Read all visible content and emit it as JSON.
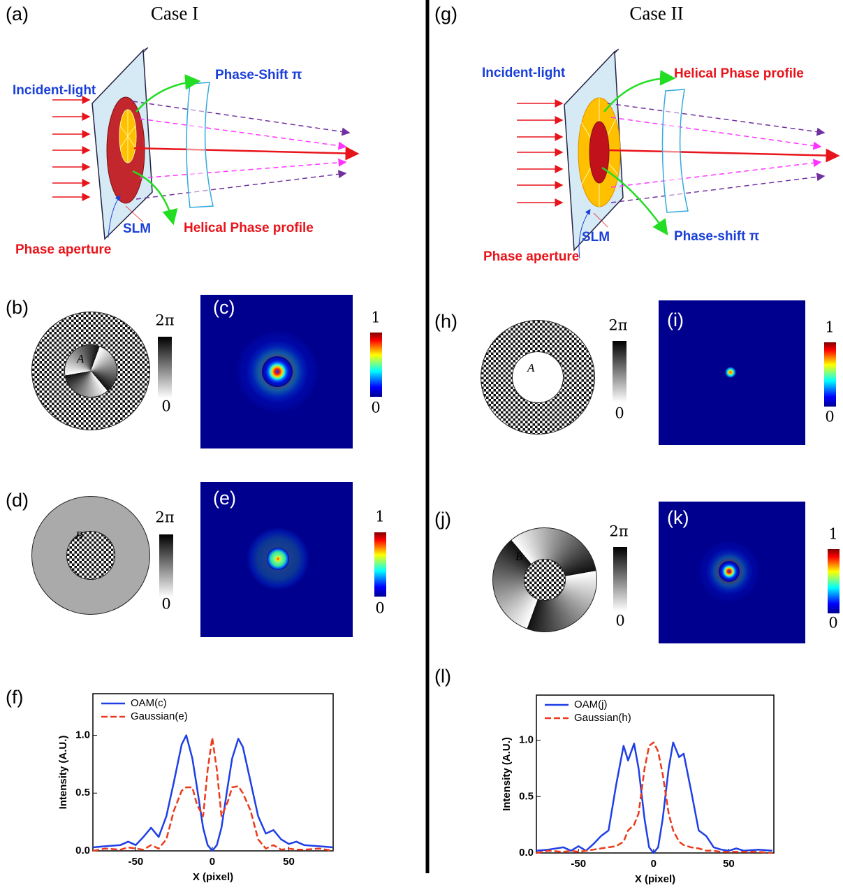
{
  "figure": {
    "left": {
      "label": "(a)",
      "title": "Case I",
      "diagram": {
        "incident": "Incident-light",
        "top": "Phase-Shift π",
        "slm": "SLM",
        "bottom": "Helical Phase profile",
        "aperture": "Phase aperture"
      },
      "mask1": {
        "label": "(b)",
        "letter": "A",
        "scale_top": "2π",
        "scale_bottom": "0"
      },
      "image1": {
        "label": "(c)",
        "scale_top": "1",
        "scale_bottom": "0"
      },
      "mask2": {
        "label": "(d)",
        "letter": "B",
        "scale_top": "2π",
        "scale_bottom": "0"
      },
      "image2": {
        "label": "(e)",
        "scale_top": "1",
        "scale_bottom": "0"
      },
      "plot_label": "(f)"
    },
    "right": {
      "label": "(g)",
      "title": "Case II",
      "diagram": {
        "incident": "Incident-light",
        "top": "Helical Phase profile",
        "slm": "SLM",
        "bottom": "Phase-shift π",
        "aperture": "Phase aperture"
      },
      "mask1": {
        "label": "(h)",
        "letter": "A",
        "scale_top": "2π",
        "scale_bottom": "0"
      },
      "image1": {
        "label": "(i)",
        "scale_top": "1",
        "scale_bottom": "0"
      },
      "mask2": {
        "label": "(j)",
        "letter": "B",
        "scale_top": "2π",
        "scale_bottom": "0"
      },
      "image2": {
        "label": "(k)",
        "scale_top": "1",
        "scale_bottom": "0"
      },
      "plot_label": "(l)"
    }
  },
  "chart_data": [
    {
      "type": "line",
      "x_label": "X (pixel)",
      "y_label": "Intensity (A.U.)",
      "legend": "upper left",
      "xlim": [
        -78,
        79
      ],
      "ylim": [
        0,
        1.36
      ],
      "xticks": [
        -50,
        0,
        50
      ],
      "yticks": [
        {
          "value": 0,
          "label": "0.0"
        },
        {
          "value": 0.5,
          "label": "0.5"
        },
        {
          "value": 1,
          "label": "1.0"
        }
      ],
      "x": [
        -78,
        -70,
        -60,
        -55,
        -50,
        -45,
        -40,
        -35,
        -30,
        -25,
        -20,
        -17,
        -13,
        -10,
        -6,
        -3,
        0,
        3,
        6,
        10,
        13,
        17,
        20,
        25,
        30,
        35,
        40,
        45,
        50,
        55,
        60,
        70,
        79
      ],
      "series": [
        {
          "name": "OAM(c)",
          "color": "#1f3fe6",
          "dashed": false,
          "values": [
            0.03,
            0.04,
            0.05,
            0.08,
            0.05,
            0.12,
            0.2,
            0.12,
            0.3,
            0.6,
            0.92,
            1.0,
            0.8,
            0.55,
            0.2,
            0.05,
            0,
            0.05,
            0.2,
            0.55,
            0.8,
            0.97,
            0.9,
            0.6,
            0.3,
            0.15,
            0.18,
            0.1,
            0.06,
            0.08,
            0.05,
            0.04,
            0.03
          ]
        },
        {
          "name": "Gaussian(e)",
          "color": "#ec3a1c",
          "dashed": true,
          "values": [
            0,
            0.02,
            0.01,
            0.03,
            0.02,
            0.01,
            0.05,
            0.02,
            0.1,
            0.35,
            0.52,
            0.55,
            0.55,
            0.4,
            0.3,
            0.7,
            0.98,
            0.7,
            0.3,
            0.42,
            0.55,
            0.56,
            0.5,
            0.35,
            0.1,
            0.02,
            0.05,
            0.01,
            0.02,
            0.01,
            0.01,
            0.02,
            0
          ]
        }
      ]
    },
    {
      "type": "line",
      "x_label": "X (pixel)",
      "y_label": "Intensity (A.U.)",
      "legend": "upper left",
      "xlim": [
        -78,
        80
      ],
      "ylim": [
        0,
        1.4
      ],
      "xticks": [
        -50,
        0,
        50
      ],
      "yticks": [
        {
          "value": 0,
          "label": "0.0"
        },
        {
          "value": 0.5,
          "label": "0.5"
        },
        {
          "value": 1,
          "label": "1.0"
        }
      ],
      "x": [
        -78,
        -70,
        -60,
        -55,
        -50,
        -45,
        -40,
        -35,
        -30,
        -25,
        -20,
        -17,
        -13,
        -10,
        -6,
        -3,
        0,
        3,
        6,
        10,
        13,
        17,
        20,
        25,
        30,
        35,
        40,
        45,
        50,
        55,
        60,
        70,
        79
      ],
      "series": [
        {
          "name": "OAM(j)",
          "color": "#1f3fe6",
          "dashed": false,
          "values": [
            0.02,
            0.03,
            0.05,
            0.02,
            0.06,
            0.02,
            0.08,
            0.15,
            0.2,
            0.6,
            0.95,
            0.82,
            0.97,
            0.75,
            0.3,
            0.05,
            0,
            0.05,
            0.3,
            0.75,
            0.98,
            0.85,
            0.88,
            0.55,
            0.2,
            0.15,
            0.05,
            0.03,
            0.02,
            0.04,
            0.02,
            0.03,
            0.02
          ]
        },
        {
          "name": "Gaussian(h)",
          "color": "#ec3a1c",
          "dashed": true,
          "values": [
            0,
            0.02,
            0.01,
            0.02,
            0.01,
            0.02,
            0.03,
            0.04,
            0.05,
            0.06,
            0.1,
            0.2,
            0.25,
            0.35,
            0.75,
            0.95,
            0.98,
            0.9,
            0.7,
            0.35,
            0.2,
            0.1,
            0.07,
            0.05,
            0.04,
            0.02,
            0.02,
            0.01,
            0.01,
            0.01,
            0.01,
            0.01,
            0
          ]
        }
      ]
    }
  ]
}
